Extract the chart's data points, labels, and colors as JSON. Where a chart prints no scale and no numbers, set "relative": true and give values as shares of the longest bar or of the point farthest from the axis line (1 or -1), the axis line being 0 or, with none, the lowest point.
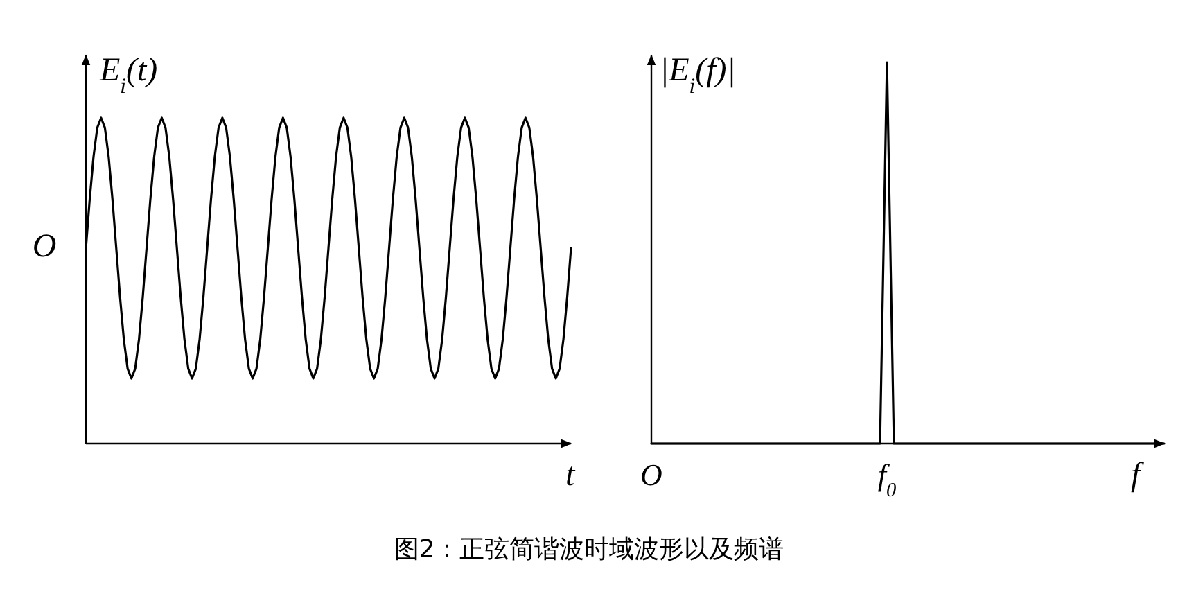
{
  "chart_data": [
    {
      "type": "line",
      "relative": true,
      "xlabel": "t",
      "ylabel": "E$_{i}$(t)",
      "categories": [
        null,
        null,
        null,
        null,
        null,
        null,
        null,
        null,
        null,
        null,
        null,
        null,
        null,
        null,
        null,
        null,
        null,
        null,
        null,
        null,
        null,
        null,
        null,
        null,
        null,
        null,
        null,
        null,
        null,
        null,
        null,
        null,
        null,
        null,
        null,
        null,
        null,
        null,
        null,
        null,
        null,
        null,
        null,
        null,
        null,
        null,
        null,
        null,
        null,
        null,
        null,
        null,
        null,
        null,
        null,
        null,
        null,
        null,
        null,
        null,
        null,
        null,
        null,
        null,
        null,
        null,
        null,
        null,
        null,
        null,
        null,
        null,
        null,
        null,
        null,
        null,
        null,
        null,
        null,
        null,
        null,
        null,
        null,
        null,
        null,
        null,
        null,
        null,
        null,
        null,
        null,
        null,
        null,
        null,
        null,
        null,
        null,
        null,
        null,
        null,
        null,
        null,
        null,
        null,
        null,
        null,
        null,
        null,
        null,
        null,
        null,
        null,
        null,
        null,
        null,
        null,
        null,
        null,
        null,
        null,
        null,
        null,
        null,
        null,
        null,
        null,
        null,
        null,
        null
      ],
      "series": [
        {
          "color": "#000000",
          "values": [
            0.6,
            0.75,
            0.88,
            0.97,
            1,
            0.97,
            0.88,
            0.75,
            0.6,
            0.45,
            0.32,
            0.23,
            0.2,
            0.23,
            0.32,
            0.45,
            0.6,
            0.75,
            0.88,
            0.97,
            1,
            0.97,
            0.88,
            0.75,
            0.6,
            0.45,
            0.32,
            0.23,
            0.2,
            0.23,
            0.32,
            0.45,
            0.6,
            0.75,
            0.88,
            0.97,
            1,
            0.97,
            0.88,
            0.75,
            0.6,
            0.45,
            0.32,
            0.23,
            0.2,
            0.23,
            0.32,
            0.45,
            0.6,
            0.75,
            0.88,
            0.97,
            1,
            0.97,
            0.88,
            0.75,
            0.6,
            0.45,
            0.32,
            0.23,
            0.2,
            0.23,
            0.32,
            0.45,
            0.6,
            0.75,
            0.88,
            0.97,
            1,
            0.97,
            0.88,
            0.75,
            0.6,
            0.45,
            0.32,
            0.23,
            0.2,
            0.23,
            0.32,
            0.45,
            0.6,
            0.75,
            0.88,
            0.97,
            1,
            0.97,
            0.88,
            0.75,
            0.6,
            0.45,
            0.32,
            0.23,
            0.2,
            0.23,
            0.32,
            0.45,
            0.6,
            0.75,
            0.88,
            0.97,
            1,
            0.97,
            0.88,
            0.75,
            0.6,
            0.45,
            0.32,
            0.23,
            0.2,
            0.23,
            0.32,
            0.45,
            0.6,
            0.75,
            0.88,
            0.97,
            1,
            0.97,
            0.88,
            0.75,
            0.6,
            0.45,
            0.32,
            0.23,
            0.2,
            0.23,
            0.32,
            0.45,
            0.6
          ]
        }
      ],
      "annotations": [
        "O",
        "图2：正弦简谐波时域波形以及频谱"
      ]
    },
    {
      "type": "line",
      "relative": true,
      "xlabel": "f",
      "ylabel": "|E$_{i}$(f)|",
      "categories": [
        "O",
        null,
        null,
        null,
        null,
        null,
        null,
        null,
        null,
        null,
        null,
        null,
        null,
        null,
        null,
        null,
        null,
        null,
        null,
        null,
        null,
        null,
        null,
        null,
        null,
        null,
        null,
        null,
        null,
        null,
        null,
        null,
        null,
        null,
        "f$_{0}$",
        null,
        null,
        null,
        null,
        null,
        null,
        null,
        null,
        null,
        null,
        null,
        null,
        null,
        null,
        null,
        null,
        null,
        null,
        null,
        null,
        null,
        null,
        null,
        null,
        null,
        null,
        null,
        null,
        null,
        null,
        null,
        null,
        null,
        null,
        null,
        null,
        null,
        null,
        null,
        null
      ],
      "series": [
        {
          "color": "#000000",
          "values": [
            0,
            0,
            0,
            0,
            0,
            0,
            0,
            0,
            0,
            0,
            0,
            0,
            0,
            0,
            0,
            0,
            0,
            0,
            0,
            0,
            0,
            0,
            0,
            0,
            0,
            0,
            0,
            0,
            0,
            0,
            0,
            0,
            0,
            0,
            1,
            0,
            0,
            0,
            0,
            0,
            0,
            0,
            0,
            0,
            0,
            0,
            0,
            0,
            0,
            0,
            0,
            0,
            0,
            0,
            0,
            0,
            0,
            0,
            0,
            0,
            0,
            0,
            0,
            0,
            0,
            0,
            0,
            0,
            0,
            0,
            0,
            0,
            0,
            0,
            0
          ]
        }
      ]
    }
  ]
}
